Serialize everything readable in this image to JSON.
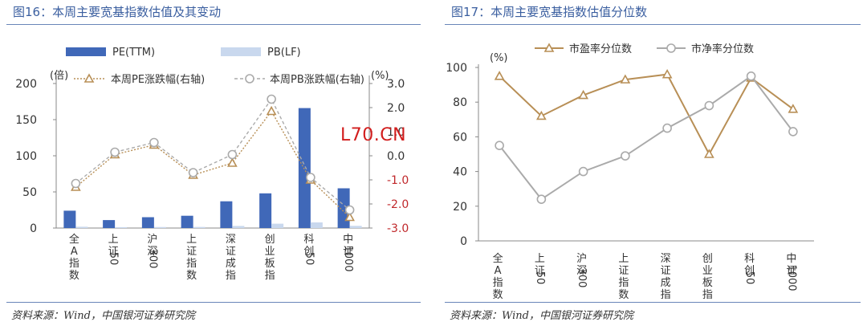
{
  "watermark": "L70.CN",
  "left": {
    "title": "图16：本周主要宽基指数估值及其变动",
    "source": "资料来源：Wind，中国银河证券研究院"
  },
  "right": {
    "title": "图17：本周主要宽基指数估值分位数",
    "source": "资料来源：Wind，中国银河证券研究院"
  },
  "chart_data": [
    {
      "type": "bar",
      "categories": [
        "全A指数",
        "上证50",
        "沪深300",
        "上证指数",
        "深证成指",
        "创业板指",
        "科创50",
        "中证1000"
      ],
      "left_axis": {
        "unit_label": "(倍)",
        "ylim": [
          0,
          200
        ],
        "ticks": [
          0,
          50,
          100,
          150,
          200
        ]
      },
      "right_axis": {
        "unit_label": "(%)",
        "ylim": [
          -3.0,
          3.0
        ],
        "ticks": [
          "-3.0",
          "-2.0",
          "-1.0",
          "0.0",
          "1.0",
          "2.0",
          "3.0"
        ]
      },
      "series": [
        {
          "name": "PE(TTM)",
          "kind": "bar",
          "axis": "left",
          "color": "#4068b8",
          "values": [
            24,
            11,
            15,
            17,
            37,
            48,
            166,
            55
          ]
        },
        {
          "name": "PB(LF)",
          "kind": "bar",
          "axis": "left",
          "color": "#c9d8ee",
          "values": [
            1.8,
            1.2,
            1.4,
            1.5,
            2.9,
            6.0,
            7.8,
            3.0
          ]
        },
        {
          "name": "本周PE涨跌幅(右轴)",
          "kind": "line",
          "axis": "right",
          "color": "#b88f56",
          "marker": "triangle",
          "values": [
            -1.3,
            0.05,
            0.45,
            -0.8,
            -0.3,
            1.85,
            -1.0,
            -2.55
          ]
        },
        {
          "name": "本周PB涨跌幅(右轴)",
          "kind": "line",
          "axis": "right",
          "color": "#aaaaaa",
          "marker": "circle",
          "values": [
            -1.15,
            0.15,
            0.55,
            -0.7,
            0.05,
            2.35,
            -0.9,
            -2.25
          ]
        }
      ]
    },
    {
      "type": "line",
      "categories": [
        "全A指数",
        "上证50",
        "沪深300",
        "上证指数",
        "深证成指",
        "创业板指",
        "科创50",
        "中证1000"
      ],
      "y_axis": {
        "unit_label": "(%)",
        "ylim": [
          0,
          100
        ],
        "ticks": [
          0,
          20,
          40,
          60,
          80,
          100
        ]
      },
      "series": [
        {
          "name": "市盈率分位数",
          "color": "#b88f56",
          "marker": "triangle",
          "values": [
            95,
            72,
            84,
            93,
            96,
            50,
            94,
            76
          ]
        },
        {
          "name": "市净率分位数",
          "color": "#aaaaaa",
          "marker": "circle",
          "values": [
            55,
            24,
            40,
            49,
            65,
            78,
            95,
            63
          ]
        }
      ]
    }
  ]
}
